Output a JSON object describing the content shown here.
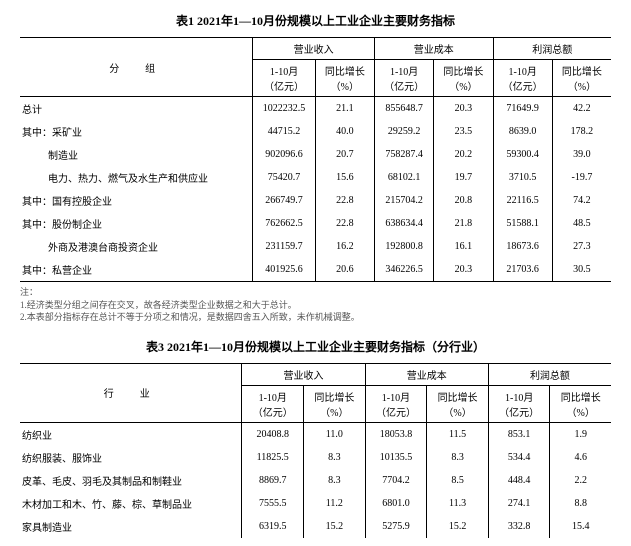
{
  "table1": {
    "title": "表1  2021年1—10月份规模以上工业企业主要财务指标",
    "row_header": "分　组",
    "group_headers": [
      "营业收入",
      "营业成本",
      "利润总额"
    ],
    "sub_headers": {
      "amount": "1-10月",
      "amount_unit": "（亿元）",
      "growth": "同比增长",
      "growth_unit": "（%）"
    },
    "rows": [
      {
        "label": "总计",
        "indent": 0,
        "v": [
          "1022232.5",
          "21.1",
          "855648.7",
          "20.3",
          "71649.9",
          "42.2"
        ]
      },
      {
        "label": "其中：采矿业",
        "indent": 0,
        "v": [
          "44715.2",
          "40.0",
          "29259.2",
          "23.5",
          "8639.0",
          "178.2"
        ]
      },
      {
        "label": "制造业",
        "indent": 2,
        "v": [
          "902096.6",
          "20.7",
          "758287.4",
          "20.2",
          "59300.4",
          "39.0"
        ]
      },
      {
        "label": "电力、热力、燃气及水生产和供应业",
        "indent": 2,
        "v": [
          "75420.7",
          "15.6",
          "68102.1",
          "19.7",
          "3710.5",
          "-19.7"
        ]
      },
      {
        "label": "其中：国有控股企业",
        "indent": 0,
        "v": [
          "266749.7",
          "22.8",
          "215704.2",
          "20.8",
          "22116.5",
          "74.2"
        ]
      },
      {
        "label": "其中：股份制企业",
        "indent": 0,
        "v": [
          "762662.5",
          "22.8",
          "638634.4",
          "21.8",
          "51588.1",
          "48.5"
        ]
      },
      {
        "label": "外商及港澳台商投资企业",
        "indent": 2,
        "v": [
          "231159.7",
          "16.2",
          "192800.8",
          "16.1",
          "18673.6",
          "27.3"
        ]
      },
      {
        "label": "其中：私营企业",
        "indent": 0,
        "v": [
          "401925.6",
          "20.6",
          "346226.5",
          "20.3",
          "21703.6",
          "30.5"
        ]
      }
    ],
    "notes": {
      "pre": "注：",
      "n1": "1.经济类型分组之间存在交叉，故各经济类型企业数据之和大于总计。",
      "n2": "2.本表部分指标存在总计不等于分项之和情况，是数据四舍五入所致，未作机械调整。"
    }
  },
  "table3": {
    "title": "表3  2021年1—10月份规模以上工业企业主要财务指标（分行业）",
    "row_header": "行　业",
    "group_headers": [
      "营业收入",
      "营业成本",
      "利润总额"
    ],
    "sub_headers": {
      "amount": "1-10月",
      "amount_unit": "（亿元）",
      "growth": "同比增长",
      "growth_unit": "（%）"
    },
    "rows": [
      {
        "label": "纺织业",
        "indent": 0,
        "v": [
          "20408.8",
          "11.0",
          "18053.8",
          "11.5",
          "853.1",
          "1.9"
        ]
      },
      {
        "label": "纺织服装、服饰业",
        "indent": 0,
        "v": [
          "11825.5",
          "8.3",
          "10135.5",
          "8.3",
          "534.4",
          "4.6"
        ]
      },
      {
        "label": "皮革、毛皮、羽毛及其制品和制鞋业",
        "indent": 0,
        "v": [
          "8869.7",
          "8.3",
          "7704.2",
          "8.5",
          "448.4",
          "2.2"
        ]
      },
      {
        "label": "木材加工和木、竹、藤、棕、草制品业",
        "indent": 0,
        "v": [
          "7555.5",
          "11.2",
          "6801.0",
          "11.3",
          "274.1",
          "8.8"
        ]
      },
      {
        "label": "家具制造业",
        "indent": 0,
        "v": [
          "6319.5",
          "15.2",
          "5275.9",
          "15.2",
          "332.8",
          "15.4"
        ]
      }
    ]
  }
}
